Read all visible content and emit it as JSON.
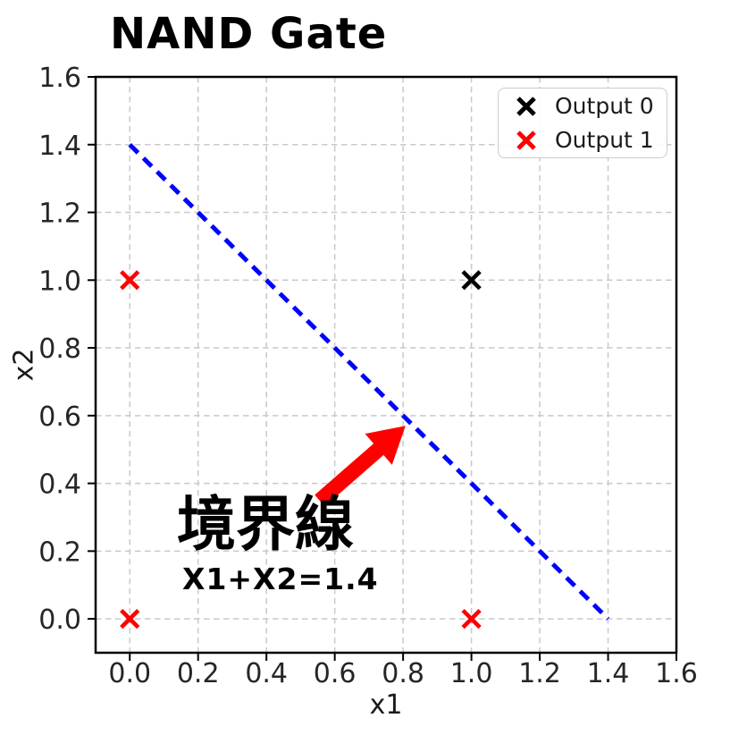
{
  "chart_data": {
    "type": "scatter",
    "title": "NAND Gate",
    "xlabel": "x1",
    "ylabel": "x2",
    "xlim": [
      -0.1,
      1.6
    ],
    "ylim": [
      -0.1,
      1.6
    ],
    "xticks": [
      0.0,
      0.2,
      0.4,
      0.6,
      0.8,
      1.0,
      1.2,
      1.4,
      1.6
    ],
    "yticks": [
      0.0,
      0.2,
      0.4,
      0.6,
      0.8,
      1.0,
      1.2,
      1.4,
      1.6
    ],
    "xtick_labels": [
      "0.0",
      "0.2",
      "0.4",
      "0.6",
      "0.8",
      "1.0",
      "1.2",
      "1.4",
      "1.6"
    ],
    "ytick_labels": [
      "0.0",
      "0.2",
      "0.4",
      "0.6",
      "0.8",
      "1.0",
      "1.2",
      "1.4",
      "1.6"
    ],
    "grid": true,
    "legend_position": "upper-right",
    "series": [
      {
        "name": "Output 0",
        "marker": "x",
        "color": "#000000",
        "points": [
          [
            1.0,
            1.0
          ]
        ]
      },
      {
        "name": "Output 1",
        "marker": "x",
        "color": "#ff0000",
        "points": [
          [
            0.0,
            0.0
          ],
          [
            0.0,
            1.0
          ],
          [
            1.0,
            0.0
          ]
        ]
      }
    ],
    "lines": [
      {
        "name": "decision-boundary",
        "from": [
          0.0,
          1.4
        ],
        "to": [
          1.4,
          0.0
        ],
        "color": "#0000ff",
        "style": "dashed"
      }
    ],
    "annotations": {
      "boundary_label": {
        "text": "境界線",
        "x": 0.14,
        "y": 0.27,
        "color": "#000000"
      },
      "boundary_formula": {
        "text": "X1+X2=1.4",
        "x": 0.155,
        "y": 0.12,
        "color": "#000000"
      },
      "arrow": {
        "from": [
          0.556,
          0.349
        ],
        "to": [
          0.807,
          0.57
        ],
        "color": "#ff0000"
      }
    }
  },
  "style_colors": {
    "grid": "#c9c9c9",
    "spine": "#000000",
    "tick_label": "#262626"
  }
}
